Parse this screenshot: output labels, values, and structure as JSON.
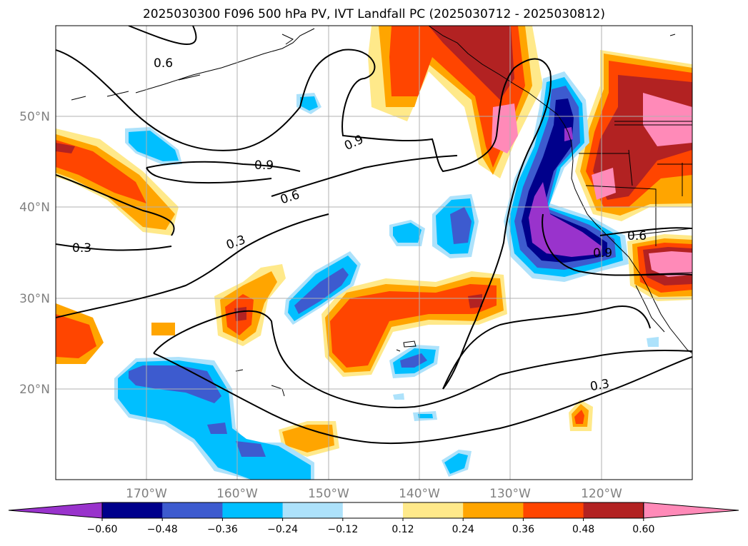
{
  "title": "2025030300 F096 500 hPa PV, IVT Landfall PC (2025030712 - 2025030812)",
  "map": {
    "lat_ticks": [
      "50°N",
      "40°N",
      "30°N",
      "20°N"
    ],
    "lon_ticks": [
      "170°W",
      "160°W",
      "150°W",
      "140°W",
      "130°W",
      "120°W"
    ],
    "contour_labels": [
      "0.6",
      "0.9",
      "0.9",
      "0.6",
      "0.3",
      "0.3",
      "0.6",
      "0.9",
      "0.3"
    ]
  },
  "colorbar": {
    "ticks": [
      "−0.60",
      "−0.48",
      "−0.36",
      "−0.24",
      "−0.12",
      "0.12",
      "0.24",
      "0.36",
      "0.48",
      "0.60"
    ],
    "colors": [
      "#9933cc",
      "#00008b",
      "#3d5bcf",
      "#00bfff",
      "#ade2fb",
      "#ffffff",
      "#ffe98a",
      "#ffa500",
      "#ff4500",
      "#b22222",
      "#ff8ab8"
    ]
  },
  "colors": {
    "axis_label": "#808080",
    "grid": "#b0b0b0"
  }
}
